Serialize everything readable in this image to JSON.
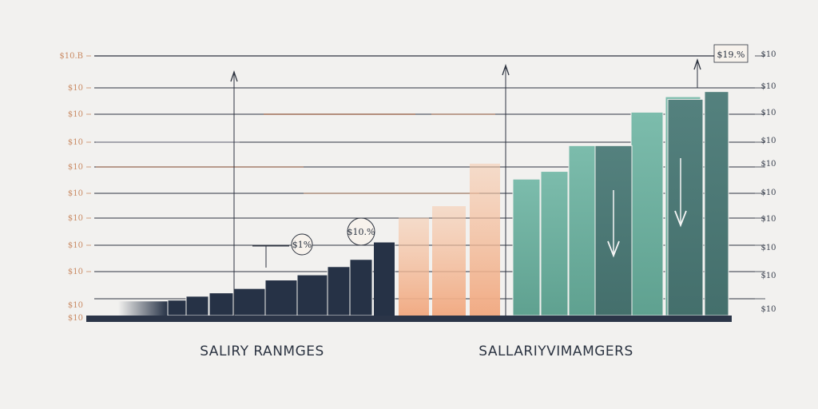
{
  "chart_data": {
    "type": "bar",
    "left_ticks": [
      "$10.B",
      "$10",
      "$10",
      "$10",
      "$10",
      "$10",
      "$10",
      "$10",
      "$10",
      "$10",
      "$10"
    ],
    "right_ticks": [
      "$10",
      "$10",
      "$10",
      "$10",
      "$10",
      "$10",
      "$10",
      "$10",
      "$10",
      "$10"
    ],
    "captions": [
      "SALIRY RANMGES",
      "SALLARIYVIMAMGERS"
    ],
    "badges": [
      "$1%",
      "$10.%",
      "$19.%"
    ],
    "series": [
      {
        "color": "#263246",
        "values": [
          0.6,
          0.75,
          0.88,
          1.05,
          1.38,
          1.58,
          1.9,
          2.18,
          2.5,
          2.84
        ]
      },
      {
        "color": "#f3b997",
        "values": [
          3.8,
          4.25,
          5.9
        ]
      },
      {
        "color": "#6fae9e",
        "values": [
          5.3,
          5.6,
          6.6,
          7.9,
          8.5
        ]
      },
      {
        "color": "#4a7b78",
        "values": [
          6.6,
          8.4,
          8.7
        ]
      }
    ],
    "ylim": [
      0,
      9
    ]
  }
}
